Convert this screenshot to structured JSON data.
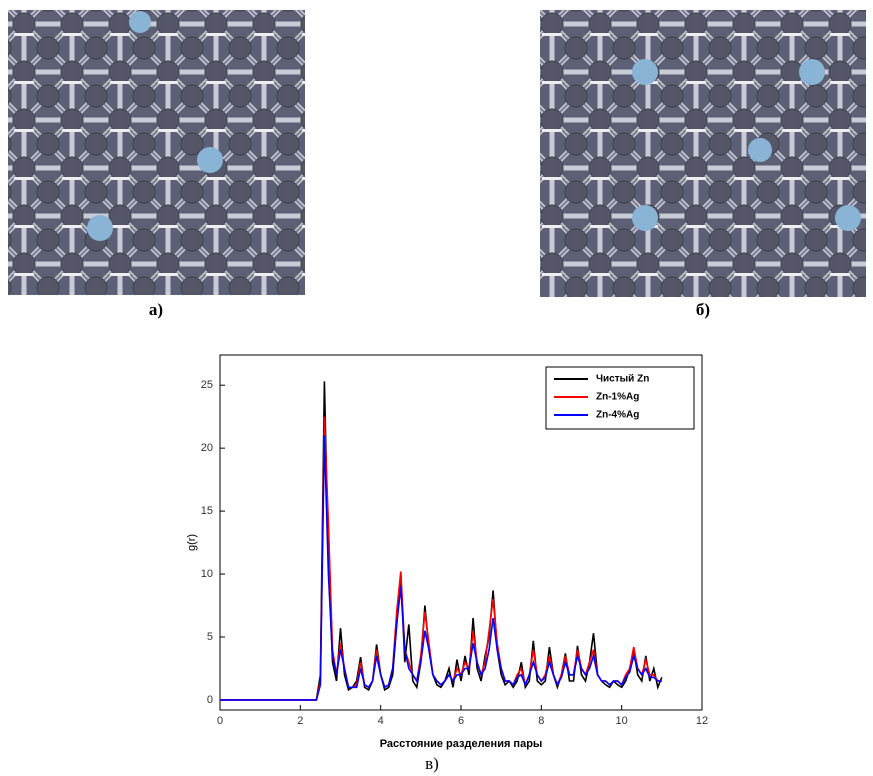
{
  "images": [
    {
      "label": "а)"
    },
    {
      "label": "б)"
    }
  ],
  "caption": "в)",
  "chart_data": {
    "type": "line",
    "x_label": "Расстояние разделения пары",
    "y_label": "g(r)",
    "x": [
      0,
      2.4,
      2.5,
      2.6,
      2.7,
      2.8,
      2.9,
      3.0,
      3.1,
      3.2,
      3.3,
      3.4,
      3.5,
      3.6,
      3.7,
      3.8,
      3.9,
      4.0,
      4.1,
      4.2,
      4.3,
      4.4,
      4.5,
      4.6,
      4.7,
      4.8,
      4.9,
      5.0,
      5.1,
      5.2,
      5.3,
      5.4,
      5.5,
      5.6,
      5.7,
      5.8,
      5.9,
      6.0,
      6.1,
      6.2,
      6.3,
      6.4,
      6.5,
      6.6,
      6.7,
      6.8,
      6.9,
      7.0,
      7.1,
      7.2,
      7.3,
      7.4,
      7.5,
      7.6,
      7.7,
      7.8,
      7.9,
      8.0,
      8.1,
      8.2,
      8.3,
      8.4,
      8.5,
      8.6,
      8.7,
      8.8,
      8.9,
      9.0,
      9.1,
      9.2,
      9.3,
      9.4,
      9.5,
      9.6,
      9.7,
      9.8,
      9.9,
      10.0,
      10.1,
      10.2,
      10.3,
      10.4,
      10.5,
      10.6,
      10.7,
      10.8,
      10.9,
      11.0
    ],
    "series": [
      {
        "name": "Чистый Zn",
        "color": "#000000",
        "values": [
          0,
          0,
          2,
          25.3,
          11,
          3,
          1.5,
          5.7,
          2,
          0.8,
          1,
          1.5,
          3.4,
          1,
          0.8,
          1.5,
          4.4,
          2,
          0.8,
          1,
          2,
          6,
          10,
          3,
          6,
          1.5,
          1,
          3,
          7.5,
          4,
          2,
          1.2,
          1,
          1.5,
          2.5,
          1,
          3.2,
          1.5,
          3.5,
          2,
          6.5,
          2.5,
          1.5,
          3.5,
          5,
          8.7,
          4,
          2,
          1.2,
          1.5,
          1,
          1.5,
          3,
          1,
          1.5,
          4.7,
          1.5,
          1.2,
          1.5,
          4.2,
          2,
          1,
          2,
          3.7,
          1.5,
          1.5,
          4.3,
          2,
          1.5,
          3,
          5.3,
          2,
          1.5,
          1.2,
          1,
          1.5,
          1.2,
          1,
          1.5,
          2.5,
          4,
          2,
          1.5,
          3.5,
          1.5,
          2.5,
          1,
          1.8
        ]
      },
      {
        "name": "Zn-1%Ag",
        "color": "#ff0000",
        "values": [
          0,
          0,
          1.5,
          22.5,
          14,
          4,
          2,
          4.5,
          2.5,
          1,
          1,
          1.2,
          3,
          1.2,
          1,
          1.5,
          4,
          2,
          1,
          1.2,
          2.5,
          7,
          10.2,
          4,
          3,
          2,
          1.5,
          3.5,
          7,
          4.5,
          2,
          1.5,
          1.2,
          1.5,
          2,
          1.5,
          2.5,
          2,
          3,
          2.5,
          5.5,
          3,
          2,
          3,
          5.5,
          8,
          4.5,
          2.5,
          1.5,
          1.5,
          1.2,
          2,
          2.5,
          1.2,
          2,
          4,
          2,
          1.5,
          2,
          3.5,
          2,
          1.2,
          2,
          3.5,
          2,
          2,
          4,
          2.5,
          2,
          3,
          4,
          2,
          1.5,
          1.5,
          1.2,
          1.5,
          1.5,
          1.2,
          2,
          2.5,
          4.2,
          2.5,
          2,
          3.2,
          2,
          2,
          1.5,
          1.5
        ]
      },
      {
        "name": "Zn-4%Ag",
        "color": "#0000ff",
        "values": [
          0,
          0,
          1.2,
          21,
          10,
          3.5,
          2,
          4,
          2.5,
          1,
          1,
          1,
          2.5,
          1.2,
          1,
          1.5,
          3.5,
          2,
          1,
          1.2,
          2.5,
          6,
          9,
          4,
          2.5,
          2,
          1.5,
          3,
          5.5,
          4,
          2,
          1.5,
          1.2,
          1.5,
          2,
          1.5,
          2,
          2,
          2.5,
          2.5,
          4.5,
          3,
          2,
          2.5,
          4,
          6.5,
          4,
          2.5,
          1.5,
          1.5,
          1.2,
          1.8,
          2,
          1.2,
          2,
          3,
          2,
          1.5,
          1.8,
          3,
          2,
          1.2,
          1.8,
          3,
          2,
          2,
          3.5,
          2.5,
          2,
          2.5,
          3.5,
          2,
          1.5,
          1.5,
          1.2,
          1.5,
          1.5,
          1.2,
          1.8,
          2.2,
          3.5,
          2.5,
          2,
          2.5,
          1.8,
          1.8,
          1.5,
          1.5
        ]
      }
    ],
    "xlim": [
      0,
      12
    ],
    "ylim": [
      -0.8,
      27.4
    ],
    "xticks": [
      0,
      2,
      4,
      6,
      8,
      10,
      12
    ],
    "yticks": [
      0,
      5,
      10,
      15,
      20,
      25
    ],
    "legend": "upper right"
  }
}
